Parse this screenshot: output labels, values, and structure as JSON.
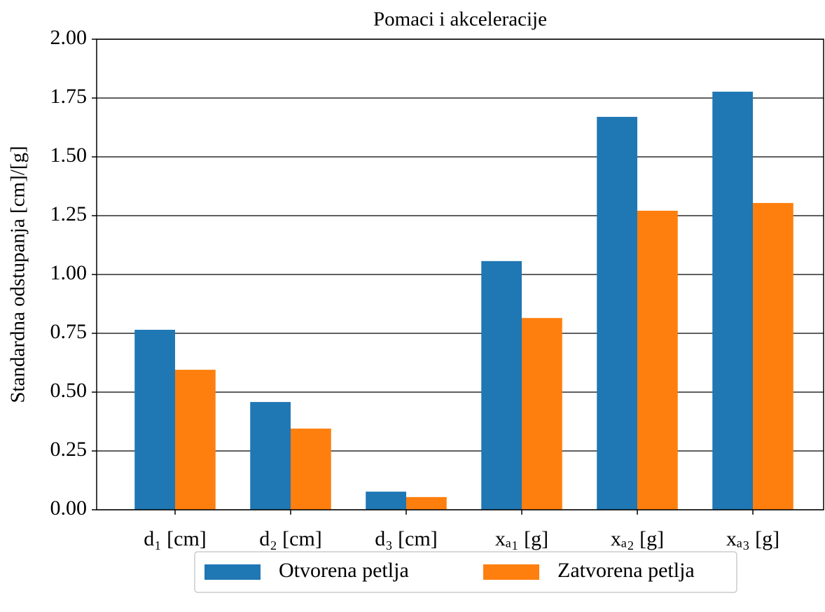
{
  "chart_data": {
    "type": "bar",
    "title": "Pomaci i akceleracije",
    "y_label": "Standardna odstupanja [cm]/[g]",
    "categories": [
      "d₁ [cm]",
      "d₂ [cm]",
      "d₃ [cm]",
      "xₐ₁ [g]",
      "xₐ₂ [g]",
      "xₐ₃ [g]"
    ],
    "series": [
      {
        "name": "Otvorena petlja",
        "color": "#1f77b4",
        "values": [
          0.765,
          0.458,
          0.077,
          1.057,
          1.67,
          1.777
        ]
      },
      {
        "name": "Zatvorena petlja",
        "color": "#ff7f0e",
        "values": [
          0.595,
          0.345,
          0.054,
          0.815,
          1.271,
          1.304
        ]
      }
    ],
    "ylim": [
      0,
      2
    ],
    "yticks": [
      {
        "value": 0,
        "label": "0.00"
      },
      {
        "value": 0.25,
        "label": "0.25"
      },
      {
        "value": 0.5,
        "label": "0.50"
      },
      {
        "value": 0.75,
        "label": "0.75"
      },
      {
        "value": 1,
        "label": "1.00"
      },
      {
        "value": 1.25,
        "label": "1.25"
      },
      {
        "value": 1.5,
        "label": "1.50"
      },
      {
        "value": 1.75,
        "label": "1.75"
      },
      {
        "value": 2,
        "label": "2.00"
      }
    ],
    "grid": true,
    "legend": "bottom"
  }
}
